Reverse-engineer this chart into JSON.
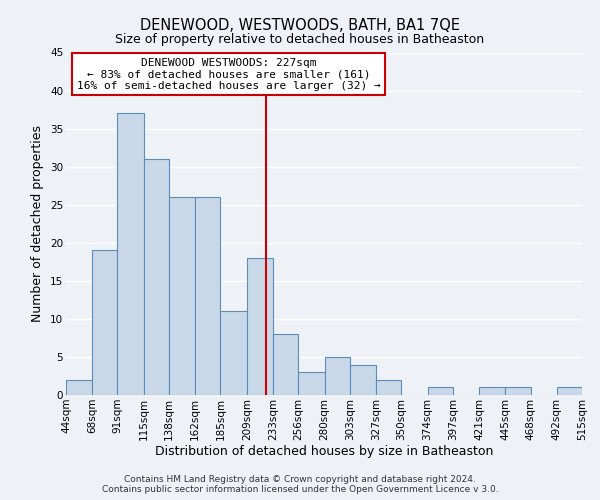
{
  "title": "DENEWOOD, WESTWOODS, BATH, BA1 7QE",
  "subtitle": "Size of property relative to detached houses in Batheaston",
  "xlabel": "Distribution of detached houses by size in Batheaston",
  "ylabel": "Number of detached properties",
  "bar_values": [
    2,
    19,
    37,
    31,
    26,
    26,
    11,
    18,
    8,
    3,
    5,
    4,
    2,
    0,
    1,
    0,
    1,
    1,
    0,
    1
  ],
  "bin_edges": [
    44,
    68,
    91,
    115,
    138,
    162,
    185,
    209,
    233,
    256,
    280,
    303,
    327,
    350,
    374,
    397,
    421,
    445,
    468,
    492,
    515
  ],
  "bin_labels": [
    "44sqm",
    "68sqm",
    "91sqm",
    "115sqm",
    "138sqm",
    "162sqm",
    "185sqm",
    "209sqm",
    "233sqm",
    "256sqm",
    "280sqm",
    "303sqm",
    "327sqm",
    "350sqm",
    "374sqm",
    "397sqm",
    "421sqm",
    "445sqm",
    "468sqm",
    "492sqm",
    "515sqm"
  ],
  "bar_face_color": "#c8d8e8",
  "bar_edge_color": "#5b8db8",
  "property_value": 227,
  "vline_color": "#cc0000",
  "annotation_box_text": [
    "DENEWOOD WESTWOODS: 227sqm",
    "← 83% of detached houses are smaller (161)",
    "16% of semi-detached houses are larger (32) →"
  ],
  "annotation_box_facecolor": "white",
  "annotation_box_edgecolor": "#cc0000",
  "ylim": [
    0,
    45
  ],
  "yticks": [
    0,
    5,
    10,
    15,
    20,
    25,
    30,
    35,
    40,
    45
  ],
  "footer_line1": "Contains HM Land Registry data © Crown copyright and database right 2024.",
  "footer_line2": "Contains public sector information licensed under the Open Government Licence v 3.0.",
  "background_color": "#eef2f7",
  "grid_color": "white",
  "title_fontsize": 10.5,
  "subtitle_fontsize": 9,
  "axis_label_fontsize": 9,
  "tick_fontsize": 7.5,
  "footer_fontsize": 6.5,
  "ann_fontsize": 8
}
